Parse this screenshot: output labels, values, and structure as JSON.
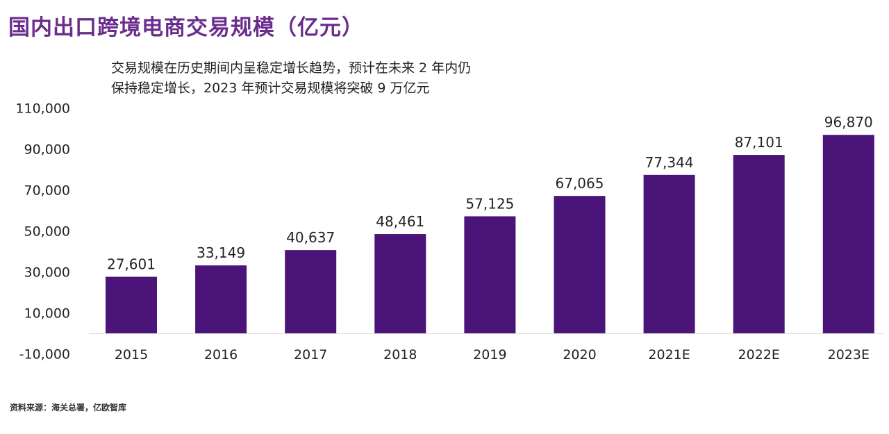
{
  "chart_data": {
    "type": "bar",
    "title": "国内出口跨境电商交易规模（亿元）",
    "annotation": [
      "交易规模在历史期间内呈稳定增长趋势，预计在未来 2 年内仍",
      "保持稳定增长，2023 年预计交易规模将突破 9 万亿元"
    ],
    "source": "资料来源：海关总署，亿欧智库",
    "categories": [
      "2015",
      "2016",
      "2017",
      "2018",
      "2019",
      "2020",
      "2021E",
      "2022E",
      "2023E"
    ],
    "values": [
      27601,
      33149,
      40637,
      48461,
      57125,
      67065,
      77344,
      87101,
      96870
    ],
    "data_labels": [
      "27,601",
      "33,149",
      "40,637",
      "48,461",
      "57,125",
      "67,065",
      "77,344",
      "87,101",
      "96,870"
    ],
    "yticks": [
      110000,
      90000,
      70000,
      50000,
      30000,
      10000,
      -10000
    ],
    "ytick_labels": [
      "110,000",
      "90,000",
      "70,000",
      "50,000",
      "30,000",
      "10,000",
      "-10,000"
    ],
    "ylim": [
      -10000,
      110000
    ],
    "xlabel": "",
    "ylabel": "",
    "grid": false,
    "legend": "none",
    "bar_color": "#4a1478",
    "title_color": "#6a2d8c"
  }
}
